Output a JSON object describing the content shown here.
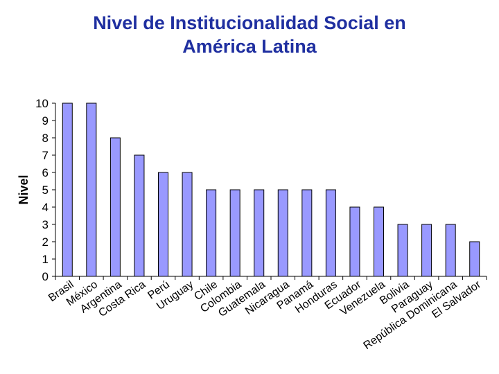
{
  "chart_data": {
    "type": "bar",
    "title_lines": [
      "Nivel de Institucionalidad Social en",
      "América Latina"
    ],
    "xlabel": "",
    "ylabel": "Nivel",
    "ylim": [
      0,
      10
    ],
    "yticks": [
      0,
      1,
      2,
      3,
      4,
      5,
      6,
      7,
      8,
      9,
      10
    ],
    "grid": false,
    "legend": "none",
    "colors": {
      "bar_fill": "#9999ff",
      "bar_stroke": "#000000",
      "title": "#1f2fa0",
      "text": "#000000"
    },
    "categories": [
      "Brasil",
      "México",
      "Argentina",
      "Costa Rica",
      "Perú",
      "Uruguay",
      "Chile",
      "Colombia",
      "Guatemala",
      "Nicaragua",
      "Panamá",
      "Honduras",
      "Ecuador",
      "Venezuela",
      "Bolivia",
      "Paraguay",
      "República Dominicana",
      "El Salvador"
    ],
    "values": [
      10,
      10,
      8,
      7,
      6,
      6,
      5,
      5,
      5,
      5,
      5,
      5,
      4,
      4,
      3,
      3,
      3,
      2
    ]
  }
}
